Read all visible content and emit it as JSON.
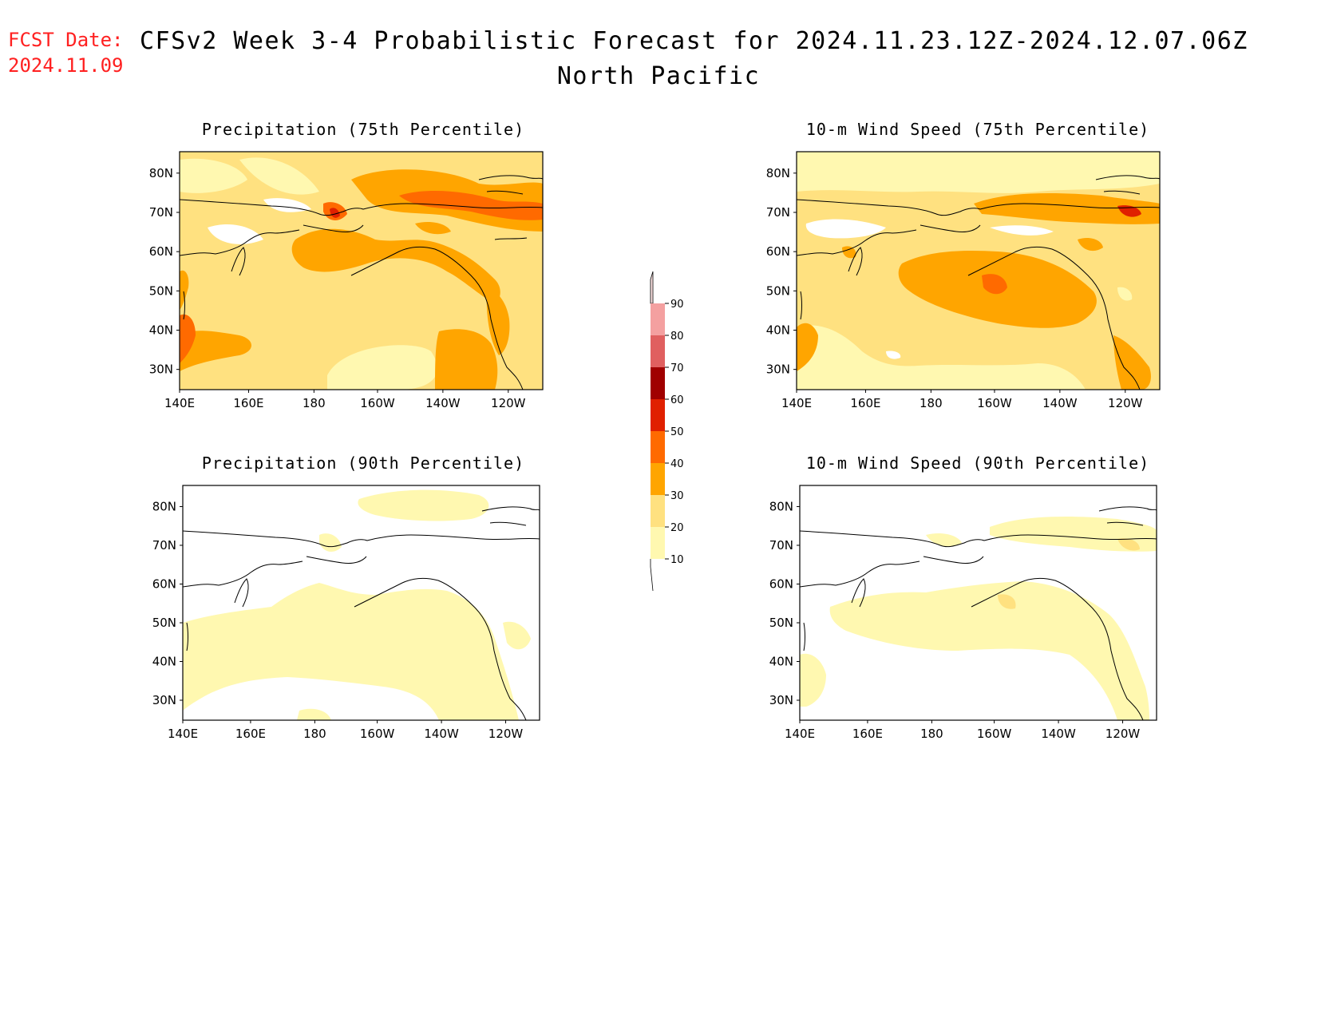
{
  "header": {
    "fcst_label": "FCST Date:",
    "fcst_date": "2024.11.09",
    "title": "CFSv2 Week 3-4 Probabilistic Forecast for 2024.11.23.12Z-2024.12.07.06Z",
    "subtitle": "North Pacific"
  },
  "panels": [
    {
      "title": "Precipitation (75th Percentile)",
      "variable": "precipitation",
      "percentile": 75
    },
    {
      "title": "10-m Wind Speed (75th Percentile)",
      "variable": "wind",
      "percentile": 75
    },
    {
      "title": "Precipitation (90th Percentile)",
      "variable": "precipitation",
      "percentile": 90
    },
    {
      "title": "10-m Wind Speed (90th Percentile)",
      "variable": "wind",
      "percentile": 90
    }
  ],
  "axes": {
    "lon_ticks": [
      "140E",
      "160E",
      "180",
      "160W",
      "140W",
      "120W"
    ],
    "lat_ticks": [
      "80N",
      "70N",
      "60N",
      "50N",
      "40N",
      "30N"
    ]
  },
  "colorbar": {
    "labels": [
      "90",
      "80",
      "70",
      "60",
      "50",
      "40",
      "30",
      "20",
      "10"
    ],
    "colors": {
      "10-20": "#fff8b0",
      "20-30": "#ffe180",
      "30-40": "#ffa500",
      "40-50": "#ff6a00",
      "50-60": "#e02000",
      "60-70": "#a00000",
      "70-80": "#e06060",
      "80-90": "#f4a0a0",
      "90+": "#ffe4e4"
    }
  }
}
